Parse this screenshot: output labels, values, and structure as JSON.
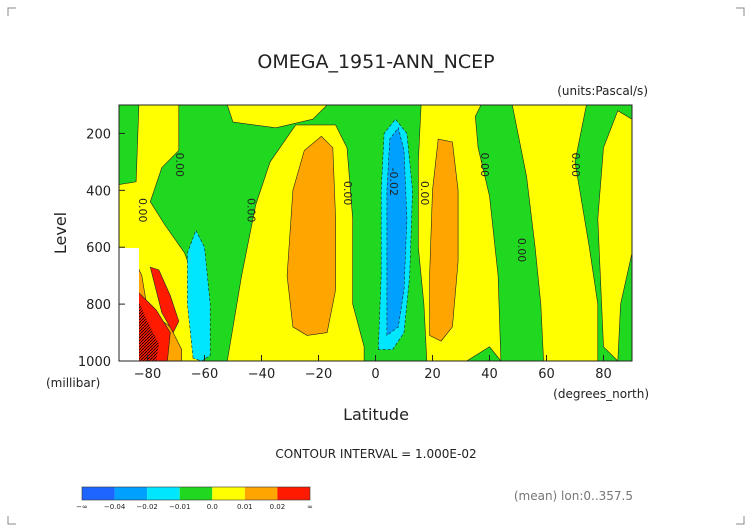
{
  "chart_data": {
    "type": "heatmap",
    "title": "OMEGA_1951-ANN_NCEP",
    "units": "(units:Pascal/s)",
    "xlabel": "Latitude",
    "ylabel": "Level",
    "x_unit": "(degrees_north)",
    "y_unit": "(millibar)",
    "xlim": [
      -90,
      90
    ],
    "ylim": [
      1000,
      100
    ],
    "x_ticks": [
      -80,
      -60,
      -40,
      -20,
      0,
      20,
      40,
      60,
      80
    ],
    "y_ticks": [
      200,
      400,
      600,
      800,
      1000
    ],
    "contour_interval": "CONTOUR INTERVAL = 1.000E-02",
    "note": "(mean) lon:0..357.5",
    "background_level": "0.0",
    "colorbar": {
      "colors": [
        "#1e64ff",
        "#00a0ff",
        "#00e6ff",
        "#1fd81f",
        "#ffff00",
        "#ffa500",
        "#ff1a00"
      ],
      "labels": [
        "-∞",
        "-0.04",
        "-0.02",
        "-0.01",
        "0.0",
        "0.01",
        "0.02",
        "∞"
      ]
    },
    "contour_labels": [
      {
        "text": "0.00",
        "lat": -83,
        "lev": 470
      },
      {
        "text": "0.00",
        "lat": -70,
        "lev": 310
      },
      {
        "text": "0.00",
        "lat": -45,
        "lev": 470
      },
      {
        "text": "0.00",
        "lat": -11,
        "lev": 410
      },
      {
        "text": "-0.02",
        "lat": 5,
        "lev": 370
      },
      {
        "text": "0.00",
        "lat": 16,
        "lev": 410
      },
      {
        "text": "0.00",
        "lat": 37,
        "lev": 310
      },
      {
        "text": "0.00",
        "lat": 50,
        "lev": 610
      },
      {
        "text": "0.00",
        "lat": 69,
        "lev": 310
      }
    ],
    "regions": [
      {
        "level": "0.01",
        "points": [
          [
            -90,
            380
          ],
          [
            -84,
            370
          ],
          [
            -83,
            100
          ],
          [
            -69,
            100
          ],
          [
            -69,
            260
          ],
          [
            -75,
            320
          ],
          [
            -79,
            440
          ],
          [
            -74,
            520
          ],
          [
            -67,
            620
          ],
          [
            -62,
            760
          ],
          [
            -60,
            900
          ],
          [
            -62,
            1000
          ],
          [
            -90,
            1000
          ]
        ]
      },
      {
        "level": "0.01",
        "points": [
          [
            -52,
            100
          ],
          [
            -50,
            160
          ],
          [
            -35,
            180
          ],
          [
            -22,
            150
          ],
          [
            -17,
            100
          ]
        ]
      },
      {
        "level": "0.01",
        "points": [
          [
            -52,
            1000
          ],
          [
            -47,
            700
          ],
          [
            -42,
            450
          ],
          [
            -37,
            300
          ],
          [
            -28,
            170
          ],
          [
            -14,
            170
          ],
          [
            -10,
            250
          ],
          [
            -8,
            500
          ],
          [
            -8,
            800
          ],
          [
            -4,
            950
          ],
          [
            -4,
            1000
          ]
        ]
      },
      {
        "level": "0.01",
        "points": [
          [
            18,
            1000
          ],
          [
            17,
            800
          ],
          [
            15,
            600
          ],
          [
            15,
            300
          ],
          [
            16,
            100
          ],
          [
            37,
            100
          ],
          [
            35,
            140
          ],
          [
            36,
            250
          ],
          [
            40,
            420
          ],
          [
            43,
            700
          ],
          [
            44,
            1000
          ],
          [
            40,
            950
          ],
          [
            32,
            1000
          ]
        ]
      },
      {
        "level": "0.01",
        "points": [
          [
            48,
            100
          ],
          [
            53,
            350
          ],
          [
            56,
            600
          ],
          [
            58,
            800
          ],
          [
            59,
            1000
          ],
          [
            78,
            1000
          ],
          [
            78,
            800
          ],
          [
            75,
            600
          ],
          [
            70,
            300
          ],
          [
            74,
            100
          ]
        ]
      },
      {
        "level": "0.01",
        "points": [
          [
            78,
            500
          ],
          [
            80,
            250
          ],
          [
            85,
            120
          ],
          [
            90,
            150
          ],
          [
            90,
            620
          ],
          [
            86,
            800
          ],
          [
            85,
            1000
          ],
          [
            80,
            950
          ]
        ]
      },
      {
        "level": "0.02",
        "points": [
          [
            -90,
            620
          ],
          [
            -86,
            610
          ],
          [
            -82,
            700
          ],
          [
            -80,
            820
          ],
          [
            -72,
            880
          ],
          [
            -68,
            960
          ],
          [
            -68,
            1000
          ],
          [
            -90,
            1000
          ]
        ]
      },
      {
        "level": "0.02",
        "points": [
          [
            -29,
            880
          ],
          [
            -31,
            700
          ],
          [
            -29,
            400
          ],
          [
            -25,
            260
          ],
          [
            -19,
            210
          ],
          [
            -15,
            250
          ],
          [
            -14,
            500
          ],
          [
            -14,
            750
          ],
          [
            -17,
            900
          ],
          [
            -24,
            910
          ]
        ]
      },
      {
        "level": "0.02",
        "points": [
          [
            19,
            910
          ],
          [
            19,
            700
          ],
          [
            20,
            400
          ],
          [
            22,
            220
          ],
          [
            27,
            230
          ],
          [
            29,
            400
          ],
          [
            29,
            650
          ],
          [
            27,
            880
          ],
          [
            23,
            930
          ]
        ]
      },
      {
        "level": "inf",
        "points": [
          [
            -90,
            700
          ],
          [
            -86,
            690
          ],
          [
            -83,
            760
          ],
          [
            -77,
            820
          ],
          [
            -72,
            900
          ],
          [
            -73,
            1000
          ],
          [
            -90,
            1000
          ]
        ]
      },
      {
        "level": "inf",
        "points": [
          [
            -79,
            670
          ],
          [
            -76,
            680
          ],
          [
            -72,
            770
          ],
          [
            -69,
            860
          ],
          [
            -71,
            900
          ],
          [
            -75,
            830
          ]
        ]
      },
      {
        "level": "-0.01",
        "points": [
          [
            -64,
            990
          ],
          [
            -66,
            800
          ],
          [
            -66,
            620
          ],
          [
            -63,
            540
          ],
          [
            -60,
            600
          ],
          [
            -58,
            800
          ],
          [
            -58,
            980
          ],
          [
            -61,
            1000
          ]
        ]
      },
      {
        "level": "-0.01",
        "points": [
          [
            1,
            960
          ],
          [
            2,
            700
          ],
          [
            2,
            400
          ],
          [
            3,
            200
          ],
          [
            7,
            150
          ],
          [
            11,
            200
          ],
          [
            13,
            400
          ],
          [
            12,
            700
          ],
          [
            10,
            900
          ],
          [
            6,
            960
          ]
        ]
      },
      {
        "level": "-0.02",
        "points": [
          [
            4,
            910
          ],
          [
            4,
            700
          ],
          [
            4,
            400
          ],
          [
            5,
            220
          ],
          [
            8,
            180
          ],
          [
            10,
            260
          ],
          [
            11,
            500
          ],
          [
            10,
            750
          ],
          [
            8,
            880
          ]
        ]
      }
    ]
  }
}
